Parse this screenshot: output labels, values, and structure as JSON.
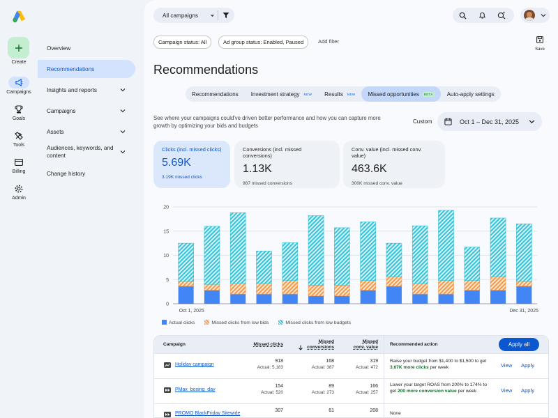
{
  "rail": {
    "create_label": "Create",
    "items": [
      {
        "label": "Campaigns",
        "icon": "megaphone-icon",
        "active": true
      },
      {
        "label": "Goals",
        "icon": "trophy-icon"
      },
      {
        "label": "Tools",
        "icon": "tools-icon"
      },
      {
        "label": "Billing",
        "icon": "credit-card-icon"
      },
      {
        "label": "Admin",
        "icon": "gear-icon"
      }
    ]
  },
  "nav": {
    "items": [
      {
        "label": "Overview"
      },
      {
        "label": "Recommendations",
        "active": true
      },
      {
        "label": "Insights and reports",
        "expandable": true
      },
      {
        "label": "Campaigns",
        "expandable": true
      },
      {
        "label": "Assets",
        "expandable": true
      },
      {
        "label": "Audiences, keywords, and content",
        "expandable": true
      },
      {
        "label": "Change history"
      }
    ]
  },
  "topbar": {
    "campaign_selector": "All campaigns",
    "save_label": "Save"
  },
  "filters": {
    "chips": [
      "Campaign status: All",
      "Ad group status: Enabled, Paused"
    ],
    "add_filter": "Add filter"
  },
  "page": {
    "title": "Recommendations",
    "tabs": [
      {
        "label": "Recommendations"
      },
      {
        "label": "Investment strategy",
        "badge": "NEW"
      },
      {
        "label": "Results",
        "badge": "NEW"
      },
      {
        "label": "Missed opportunities",
        "badge": "BETA",
        "active": true
      },
      {
        "label": "Auto-apply settings"
      }
    ],
    "description": "See where your campaigns could've driven better performance and how you can capture more growth by optimizing your bids and budgets",
    "date_mode": "Custom",
    "date_range": "Oct 1 – Dec 31, 2025"
  },
  "cards": [
    {
      "title": "Clicks (incl. missed clicks)",
      "value": "5.69K",
      "sub": "3.19K missed clicks",
      "active": true
    },
    {
      "title": "Conversions (incl. missed conversions)",
      "value": "1.13K",
      "sub": "987 missed conversions"
    },
    {
      "title": "Conv. value (incl. missed conv. value)",
      "value": "463.6K",
      "sub": "300K missed conv. value"
    }
  ],
  "chart_data": {
    "type": "bar",
    "stacked": true,
    "x_start_label": "Oct 1, 2025",
    "x_end_label": "Dec 31, 2025",
    "ylim": [
      0,
      20
    ],
    "yticks": [
      "0",
      "5",
      "10",
      "15",
      "20"
    ],
    "grid": true,
    "legend_position": "bottom-left",
    "series": [
      {
        "name": "Actual clicks",
        "color": "#4285f4",
        "pattern": "solid",
        "values": [
          3.6,
          2.8,
          2.0,
          2.0,
          2.0,
          1.6,
          1.6,
          2.8,
          3.6,
          2.0,
          2.0,
          2.8,
          2.8,
          3.6
        ]
      },
      {
        "name": "Missed clicks from low bids",
        "color": "#f29a4a",
        "pattern": "hatch",
        "values": [
          1.0,
          1.2,
          2.2,
          2.2,
          2.8,
          2.2,
          2.2,
          2.0,
          2.0,
          2.2,
          2.8,
          2.0,
          2.8,
          1.0
        ]
      },
      {
        "name": "Missed clicks from low budgets",
        "color": "#34c3d9",
        "pattern": "hatch",
        "values": [
          7.9,
          12.0,
          14.6,
          6.7,
          7.8,
          14.4,
          11.9,
          12.1,
          6.9,
          11.9,
          14.5,
          6.9,
          12.1,
          11.9
        ]
      }
    ]
  },
  "table": {
    "headers": {
      "campaign": "Campaign",
      "missed_clicks": "Missed clicks",
      "missed_conversions": "Missed conversions",
      "missed_conv_value": "Missed conv. value",
      "recommended_action": "Recommended action"
    },
    "apply_all_label": "Apply all",
    "rows": [
      {
        "name": "Holiday campaign",
        "icon": "search-campaign-icon",
        "clicks": "918",
        "clicks_actual": "Actual: 5,183",
        "conversions": "168",
        "conversions_actual": "Actual: 387",
        "value": "319",
        "value_actual": "Actual: 472",
        "rec_prefix": "Raise your budget from $1,400 to $1,500 to get ",
        "rec_highlight": "3.67K more clicks",
        "rec_suffix": " per week",
        "view": "View",
        "apply": "Apply"
      },
      {
        "name": "PMax_boxing_day",
        "icon": "pmax-campaign-icon",
        "clicks": "154",
        "clicks_actual": "Actual: 520",
        "conversions": "89",
        "conversions_actual": "Actual: 273",
        "value": "166",
        "value_actual": "Actual: 257",
        "rec_prefix": "Lower your target ROAS from 200% to 174% to get ",
        "rec_highlight": "200 more conversion value",
        "rec_suffix": " per week",
        "view": "View",
        "apply": "Apply"
      },
      {
        "name": "PROMO BlackFriday Sitewide",
        "icon": "pmax-campaign-icon",
        "clicks": "307",
        "clicks_actual": "",
        "conversions": "61",
        "conversions_actual": "",
        "value": "208",
        "value_actual": "",
        "rec_prefix": "None",
        "rec_highlight": "",
        "rec_suffix": "",
        "view": "",
        "apply": ""
      }
    ]
  }
}
